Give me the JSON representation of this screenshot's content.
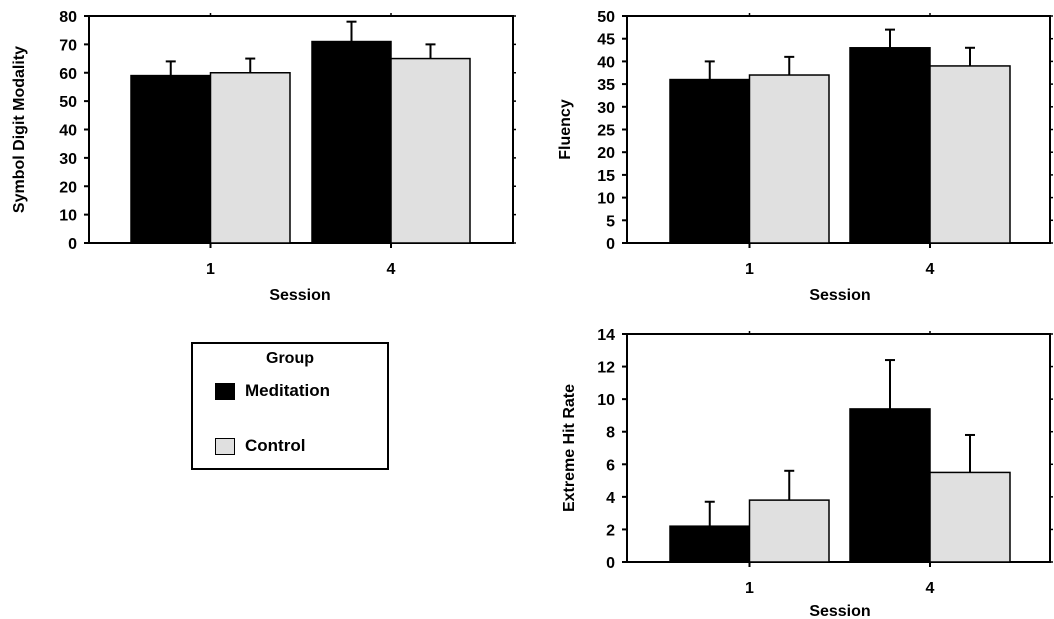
{
  "chart_data": [
    {
      "type": "bar",
      "ylabel": "Symbol Digit Modality",
      "xlabel": "Session",
      "categories": [
        "1",
        "4"
      ],
      "ylim": [
        0,
        80
      ],
      "yticks": [
        0,
        10,
        20,
        30,
        40,
        50,
        60,
        70,
        80
      ],
      "series": [
        {
          "name": "Meditation",
          "values": [
            59,
            71
          ],
          "errors": [
            5,
            7
          ],
          "color": "#000000"
        },
        {
          "name": "Control",
          "values": [
            60,
            65
          ],
          "errors": [
            5,
            5
          ],
          "color": "#e0e0e0"
        }
      ]
    },
    {
      "type": "bar",
      "ylabel": "Fluency",
      "xlabel": "Session",
      "categories": [
        "1",
        "4"
      ],
      "ylim": [
        0,
        50
      ],
      "yticks": [
        0,
        5,
        10,
        15,
        20,
        25,
        30,
        35,
        40,
        45,
        50
      ],
      "series": [
        {
          "name": "Meditation",
          "values": [
            36,
            43
          ],
          "errors": [
            4,
            4
          ],
          "color": "#000000"
        },
        {
          "name": "Control",
          "values": [
            37,
            39
          ],
          "errors": [
            4,
            4
          ],
          "color": "#e0e0e0"
        }
      ]
    },
    {
      "type": "bar",
      "ylabel": "Extreme Hit Rate",
      "xlabel": "Session",
      "categories": [
        "1",
        "4"
      ],
      "ylim": [
        0,
        14
      ],
      "yticks": [
        0,
        2,
        4,
        6,
        8,
        10,
        12,
        14
      ],
      "series": [
        {
          "name": "Meditation",
          "values": [
            2.2,
            9.4
          ],
          "errors": [
            1.5,
            3.0
          ],
          "color": "#000000"
        },
        {
          "name": "Control",
          "values": [
            3.8,
            5.5
          ],
          "errors": [
            1.8,
            2.3
          ],
          "color": "#e0e0e0"
        }
      ]
    }
  ],
  "legend": {
    "title": "Group",
    "items": [
      {
        "label": "Meditation",
        "color": "#000000"
      },
      {
        "label": "Control",
        "color": "#e0e0e0"
      }
    ]
  }
}
